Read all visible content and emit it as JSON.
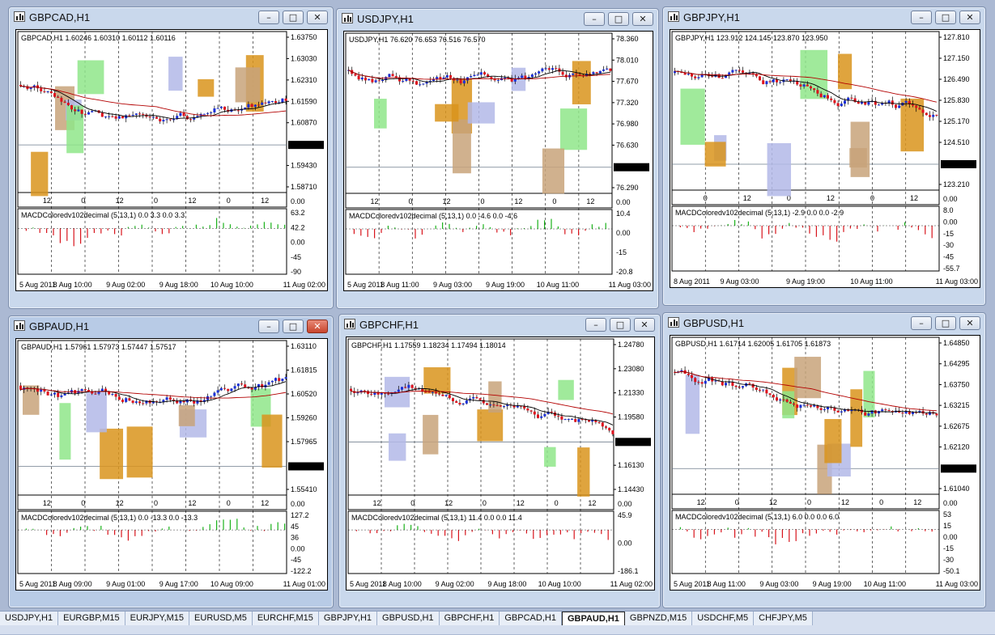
{
  "windows": [
    {
      "id": "gbpcad",
      "title": "GBPCAD,H1",
      "active": false,
      "close_red": false,
      "header": "GBPCAD,H1  1.60246 1.60310 1.60112 1.60116",
      "price_labels": [
        "1.63750",
        "1.63030",
        "1.62310",
        "1.61590",
        "1.60870",
        "1.60116",
        "1.59430",
        "1.58710"
      ],
      "current_price": "1.60116",
      "time_ticks": [
        "12",
        "0",
        "12",
        "0",
        "12",
        "0",
        "12"
      ],
      "macd_title": "MACDColoredv102decimal (5,13,1) 0.0 3.3 0.0 3.3",
      "macd_labels": [
        "63.2",
        "42.2",
        "0.00",
        "-45",
        "-90"
      ],
      "dates": [
        "5 Aug 2011",
        "8 Aug 10:00",
        "9 Aug 02:00",
        "9 Aug 18:00",
        "10 Aug 10:00",
        "11 Aug 02:00"
      ],
      "top_side_label": "0.00"
    },
    {
      "id": "usdjpy",
      "title": "USDJPY,H1",
      "active": false,
      "close_red": false,
      "header": "USDJPY,H1  76.620 76.653 76.516 76.570",
      "price_labels": [
        "78.360",
        "78.010",
        "77.670",
        "77.320",
        "76.980",
        "76.630",
        "76.570",
        "76.290"
      ],
      "current_price": "76.570",
      "time_ticks": [
        "12",
        "0",
        "12",
        "0",
        "12",
        "0",
        "12"
      ],
      "macd_title": "MACDColoredv102decimal (5,13,1) 0.0 -4.6 0.0 -4.6",
      "macd_labels": [
        "10.4",
        "0.00",
        "-15",
        "-20.8"
      ],
      "dates": [
        "5 Aug 2011",
        "8 Aug 11:00",
        "9 Aug 03:00",
        "9 Aug 19:00",
        "10 Aug 11:00",
        "11 Aug 03:00"
      ],
      "top_side_label": "0.00"
    },
    {
      "id": "gbpjpy",
      "title": "GBPJPY,H1",
      "active": false,
      "close_red": false,
      "header": "GBPJPY,H1  123.912 124.145 123.870 123.950",
      "price_labels": [
        "127.810",
        "127.150",
        "126.490",
        "125.830",
        "125.170",
        "124.510",
        "123.950",
        "123.210"
      ],
      "current_price": "123.950",
      "time_ticks": [
        "0",
        "12",
        "0",
        "12",
        "0",
        "12"
      ],
      "macd_title": "MACDColoredv102decimal (5,13,1) -2.9 0.0 0.0 -2.9",
      "macd_labels": [
        "8.0",
        "0.00",
        "-15",
        "-30",
        "-45",
        "-55.7"
      ],
      "dates": [
        "8 Aug 2011",
        "9 Aug 03:00",
        "9 Aug 19:00",
        "10 Aug 11:00",
        "11 Aug 03:00"
      ],
      "top_side_label": "0.00"
    },
    {
      "id": "gbpaud",
      "title": "GBPAUD,H1",
      "active": true,
      "close_red": true,
      "header": "GBPAUD,H1  1.57961 1.57973 1.57447 1.57517",
      "price_labels": [
        "1.63110",
        "1.61815",
        "1.60520",
        "1.59260",
        "1.57965",
        "1.57517",
        "1.55410"
      ],
      "current_price": "1.57517",
      "time_ticks": [
        "12",
        "0",
        "12",
        "0",
        "12",
        "0",
        "12"
      ],
      "macd_title": "MACDColoredv102decimal (5,13,1) 0.0 -13.3 0.0 -13.3",
      "macd_labels": [
        "127.2",
        "45",
        "36",
        "0.00",
        "-45",
        "-122.2"
      ],
      "dates": [
        "5 Aug 2011",
        "8 Aug 09:00",
        "9 Aug 01:00",
        "9 Aug 17:00",
        "10 Aug 09:00",
        "11 Aug 01:00"
      ],
      "top_side_label": "0.00"
    },
    {
      "id": "gbpchf",
      "title": "GBPCHF,H1",
      "active": false,
      "close_red": false,
      "header": "GBPCHF,H1  1.17559 1.18234 1.17494 1.18014",
      "price_labels": [
        "1.24780",
        "1.23080",
        "1.21330",
        "1.19580",
        "1.18014",
        "1.16130",
        "1.14430"
      ],
      "current_price": "1.18014",
      "time_ticks": [
        "12",
        "0",
        "12",
        "0",
        "12",
        "0",
        "12"
      ],
      "macd_title": "MACDColoredv102decimal (5,13,1) 11.4 0.0 0.0 11.4",
      "macd_labels": [
        "45.9",
        "0.00",
        "-186.1"
      ],
      "dates": [
        "5 Aug 2011",
        "8 Aug 10:00",
        "9 Aug 02:00",
        "9 Aug 18:00",
        "10 Aug 10:00",
        "11 Aug 02:00"
      ],
      "top_side_label": "0.00"
    },
    {
      "id": "gbpusd",
      "title": "GBPUSD,H1",
      "active": false,
      "close_red": false,
      "header": "GBPUSD,H1  1.61714 1.62005 1.61705 1.61873",
      "price_labels": [
        "1.64850",
        "1.64295",
        "1.63750",
        "1.63215",
        "1.62675",
        "1.62120",
        "1.61873",
        "1.61040"
      ],
      "current_price": "1.61873",
      "time_ticks": [
        "12",
        "0",
        "12",
        "0",
        "12",
        "0",
        "12"
      ],
      "macd_title": "MACDColoredv102decimal (5,13,1) 6.0 0.0 0.0 6.0",
      "macd_labels": [
        "53",
        "15",
        "0.00",
        "-15",
        "-30",
        "-50.1"
      ],
      "dates": [
        "5 Aug 2011",
        "8 Aug 11:00",
        "9 Aug 03:00",
        "9 Aug 19:00",
        "10 Aug 11:00",
        "11 Aug 03:00"
      ],
      "top_side_label": "0.00"
    }
  ],
  "taskbar": {
    "tabs": [
      "USDJPY,H1",
      "EURGBP,M15",
      "EURJPY,M15",
      "EURUSD,M5",
      "EURCHF,M15",
      "GBPJPY,H1",
      "GBPUSD,H1",
      "GBPCHF,H1",
      "GBPCAD,H1",
      "GBPAUD,H1",
      "GBPNZD,M15",
      "USDCHF,M5",
      "CHFJPY,M5"
    ],
    "active_tab": "GBPAUD,H1"
  },
  "colors": {
    "bull_candle": "#1a2fd8",
    "bear_candle": "#e0101c",
    "ma_fast": "#000000",
    "ma_slow": "#b30000",
    "ma_magenta": "#d81ad8",
    "macd_up": "#1bb21b",
    "macd_down": "#d8141c",
    "zone_orange": "#d9941c",
    "zone_tan": "#c8a37a",
    "zone_green": "#8fe68a",
    "zone_blue": "#b3b8e8",
    "signal_cyan": "#1fb3e6"
  }
}
